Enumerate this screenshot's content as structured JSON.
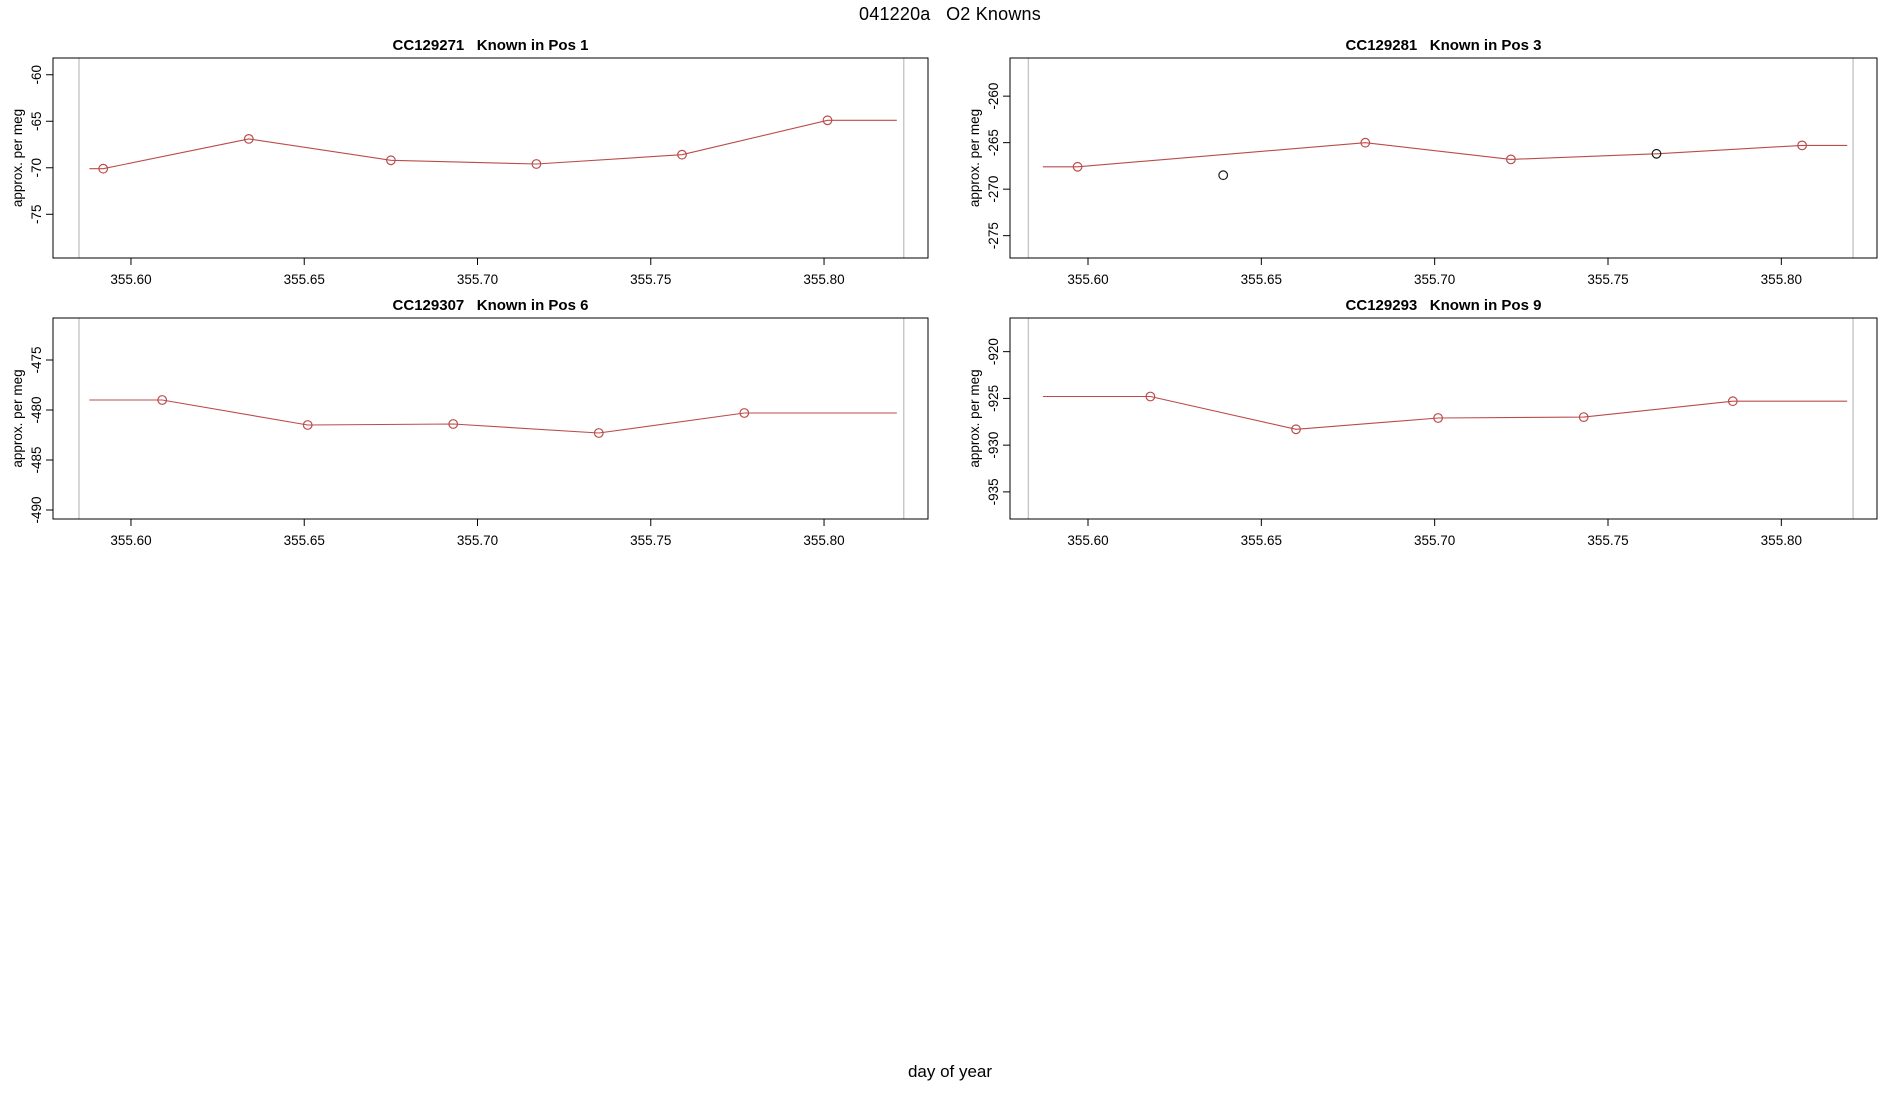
{
  "main_title": "041220a   O2 Knowns",
  "xlabel": "day of year",
  "colors": {
    "line": "#bc4b4b",
    "flagged": "#1a1a1a",
    "frame": "#000000",
    "run_boundary": "#c6c6c6",
    "text": "#000000"
  },
  "chart_data": [
    {
      "type": "line",
      "id": "CC129271",
      "title": "CC129271   Known in Pos 1",
      "ylabel": "approx. per meg",
      "xlim": [
        355.5775,
        355.83
      ],
      "ylim": [
        -79.7,
        -58.2
      ],
      "x_ticks": [
        355.6,
        355.65,
        355.7,
        355.75,
        355.8
      ],
      "x_tick_labels": [
        "355.60",
        "355.65",
        "355.70",
        "355.75",
        "355.80"
      ],
      "y_ticks": [
        -60,
        -65,
        -70,
        -75
      ],
      "y_tick_labels": [
        "-60",
        "-65",
        "-70",
        "-75"
      ],
      "run_boundaries": [
        355.585,
        355.823
      ],
      "points": {
        "x": [
          355.592,
          355.634,
          355.675,
          355.717,
          355.759,
          355.801
        ],
        "y": [
          -70.1,
          -66.9,
          -69.2,
          -69.6,
          -68.6,
          -64.9
        ],
        "flagged": [
          false,
          false,
          false,
          false,
          false,
          false
        ]
      },
      "line": [
        [
          355.588,
          -70.1
        ],
        [
          355.592,
          -70.1
        ],
        [
          355.634,
          -66.9
        ],
        [
          355.675,
          -69.2
        ],
        [
          355.717,
          -69.6
        ],
        [
          355.759,
          -68.6
        ],
        [
          355.801,
          -64.9
        ],
        [
          355.821,
          -64.9
        ]
      ]
    },
    {
      "type": "line",
      "id": "CC129281",
      "title": "CC129281   Known in Pos 3",
      "ylabel": "approx. per meg",
      "xlim": [
        355.5775,
        355.8276
      ],
      "ylim": [
        -277.4,
        -255.9
      ],
      "x_ticks": [
        355.6,
        355.65,
        355.7,
        355.75,
        355.8
      ],
      "x_tick_labels": [
        "355.60",
        "355.65",
        "355.70",
        "355.75",
        "355.80"
      ],
      "y_ticks": [
        -260,
        -265,
        -270,
        -275
      ],
      "y_tick_labels": [
        "-260",
        "-265",
        "-270",
        "-275"
      ],
      "run_boundaries": [
        355.5828,
        355.8207
      ],
      "points": {
        "x": [
          355.597,
          355.639,
          355.68,
          355.722,
          355.764,
          355.806
        ],
        "y": [
          -267.6,
          -268.5,
          -265.0,
          -266.8,
          -266.2,
          -265.3
        ],
        "flagged": [
          false,
          true,
          false,
          false,
          true,
          false
        ]
      },
      "line": [
        [
          355.587,
          -267.6
        ],
        [
          355.597,
          -267.6
        ],
        [
          355.68,
          -265.0
        ],
        [
          355.722,
          -266.8
        ],
        [
          355.764,
          -266.2
        ],
        [
          355.806,
          -265.3
        ],
        [
          355.819,
          -265.3
        ]
      ]
    },
    {
      "type": "line",
      "id": "CC129307",
      "title": "CC129307   Known in Pos 6",
      "ylabel": "approx. per meg",
      "xlim": [
        355.5775,
        355.83
      ],
      "ylim": [
        -490.9,
        -470.8
      ],
      "x_ticks": [
        355.6,
        355.65,
        355.7,
        355.75,
        355.8
      ],
      "x_tick_labels": [
        "355.60",
        "355.65",
        "355.70",
        "355.75",
        "355.80"
      ],
      "y_ticks": [
        -475,
        -480,
        -485,
        -490
      ],
      "y_tick_labels": [
        "-475",
        "-480",
        "-485",
        "-490"
      ],
      "run_boundaries": [
        355.585,
        355.823
      ],
      "points": {
        "x": [
          355.609,
          355.651,
          355.693,
          355.735,
          355.777
        ],
        "y": [
          -479.0,
          -481.5,
          -481.4,
          -482.3,
          -480.3
        ],
        "flagged": [
          false,
          false,
          false,
          false,
          false
        ]
      },
      "line": [
        [
          355.588,
          -479.0
        ],
        [
          355.609,
          -479.0
        ],
        [
          355.651,
          -481.5
        ],
        [
          355.693,
          -481.4
        ],
        [
          355.735,
          -482.3
        ],
        [
          355.777,
          -480.3
        ],
        [
          355.821,
          -480.3
        ]
      ]
    },
    {
      "type": "line",
      "id": "CC129293",
      "title": "CC129293   Known in Pos 9",
      "ylabel": "approx. per meg",
      "xlim": [
        355.5775,
        355.8276
      ],
      "ylim": [
        -937.9,
        -916.4
      ],
      "x_ticks": [
        355.6,
        355.65,
        355.7,
        355.75,
        355.8
      ],
      "x_tick_labels": [
        "355.60",
        "355.65",
        "355.70",
        "355.75",
        "355.80"
      ],
      "y_ticks": [
        -920,
        -925,
        -930,
        -935
      ],
      "y_tick_labels": [
        "-920",
        "-925",
        "-930",
        "-935"
      ],
      "run_boundaries": [
        355.5828,
        355.8207
      ],
      "points": {
        "x": [
          355.618,
          355.66,
          355.701,
          355.743,
          355.786
        ],
        "y": [
          -924.8,
          -928.3,
          -927.1,
          -927.0,
          -925.3
        ],
        "flagged": [
          false,
          false,
          false,
          false,
          false
        ]
      },
      "line": [
        [
          355.587,
          -924.8
        ],
        [
          355.618,
          -924.8
        ],
        [
          355.66,
          -928.3
        ],
        [
          355.701,
          -927.1
        ],
        [
          355.743,
          -927.0
        ],
        [
          355.786,
          -925.3
        ],
        [
          355.819,
          -925.3
        ]
      ]
    }
  ]
}
